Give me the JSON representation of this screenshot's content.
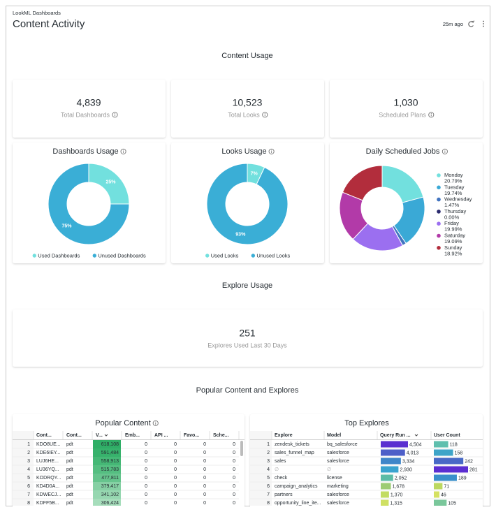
{
  "header": {
    "breadcrumb": "LookML Dashboards",
    "title": "Content Activity",
    "updated": "25m ago"
  },
  "sections": [
    "Content Usage",
    "Explore Usage",
    "Popular Content and Explores"
  ],
  "kpis": [
    {
      "value": "4,839",
      "label": "Total Dashboards"
    },
    {
      "value": "10,523",
      "label": "Total Looks"
    },
    {
      "value": "1,030",
      "label": "Scheduled Plans"
    },
    {
      "value": "251",
      "label": "Explores Used Last 30 Days"
    }
  ],
  "chart_data": [
    {
      "type": "pie",
      "title": "Dashboards Usage",
      "categories": [
        "Used Dashboards",
        "Unused Dashboards"
      ],
      "values": [
        25,
        75
      ],
      "value_labels": [
        "25%",
        "75%"
      ],
      "colors": [
        "#72e0de",
        "#3aaed6"
      ],
      "legend": "bottom"
    },
    {
      "type": "pie",
      "title": "Looks Usage",
      "categories": [
        "Used Looks",
        "Unused Looks"
      ],
      "values": [
        7,
        93
      ],
      "value_labels": [
        "7%",
        "93%"
      ],
      "colors": [
        "#72e0de",
        "#3aaed6"
      ],
      "legend": "bottom"
    },
    {
      "type": "pie",
      "title": "Daily Scheduled Jobs",
      "categories": [
        "Monday",
        "Tuesday",
        "Wednesday",
        "Thursday",
        "Friday",
        "Saturday",
        "Sunday"
      ],
      "values": [
        20.79,
        19.74,
        1.47,
        0,
        19.99,
        19.09,
        18.92
      ],
      "value_labels": [
        "20.79%",
        "19.74%",
        "1.47%",
        "0.00%",
        "19.99%",
        "19.09%",
        "18.92%"
      ],
      "colors": [
        "#72e0de",
        "#3aa9d6",
        "#4274c0",
        "#2a2a6e",
        "#9b6ff0",
        "#b23aa8",
        "#b22d3c"
      ],
      "legend": "right"
    }
  ],
  "popular_content": {
    "title": "Popular Content",
    "columns": [
      "Cont...",
      "Cont...",
      "V...",
      "Emb...",
      "API ...",
      "Favo...",
      "Sche..."
    ],
    "rows": [
      [
        1,
        "KDO8UE...",
        "pdt",
        618108,
        0,
        0,
        0,
        0
      ],
      [
        2,
        "KDE6IEY...",
        "pdt",
        591484,
        0,
        0,
        0,
        0
      ],
      [
        3,
        "LUJ6HE...",
        "pdt",
        558913,
        0,
        0,
        0,
        0
      ],
      [
        4,
        "LU36YQ...",
        "pdt",
        515783,
        0,
        0,
        0,
        0
      ],
      [
        5,
        "KODRQY...",
        "pdt",
        477811,
        0,
        0,
        0,
        0
      ],
      [
        6,
        "KD4D0A...",
        "pdt",
        379417,
        0,
        0,
        0,
        0
      ],
      [
        7,
        "KDWECJ...",
        "pdt",
        341102,
        0,
        0,
        0,
        0
      ],
      [
        8,
        "KDFF5B...",
        "pdt",
        306424,
        0,
        0,
        0,
        0
      ]
    ],
    "views_labels": [
      "618,108",
      "591,484",
      "558,913",
      "515,783",
      "477,811",
      "379,417",
      "341,102",
      "306,424"
    ],
    "views_colors": [
      "#2fae66",
      "#37b26c",
      "#45b876",
      "#55be81",
      "#66c48d",
      "#86d0a4",
      "#96d7b0",
      "#a6ddbb"
    ]
  },
  "top_explores": {
    "title": "Top Explores",
    "columns": [
      "Explore",
      "Model",
      "Query Run ...",
      "User Count"
    ],
    "rows": [
      [
        1,
        "zendesk_tickets",
        "bq_salesforce",
        4504,
        118
      ],
      [
        2,
        "sales_funnel_map",
        "salesforce",
        4013,
        158
      ],
      [
        3,
        "sales",
        "salesforce",
        3334,
        242
      ],
      [
        4,
        "∅",
        "∅",
        2930,
        281
      ],
      [
        5,
        "check",
        "license",
        2052,
        189
      ],
      [
        6,
        "campaign_analytics",
        "marketing",
        1678,
        71
      ],
      [
        7,
        "partners",
        "salesforce",
        1370,
        46
      ],
      [
        8,
        "opportunity_line_ite...",
        "salesforce",
        1315,
        105
      ]
    ],
    "query_run_labels": [
      "4,504",
      "4,013",
      "3,334",
      "2,930",
      "2,052",
      "1,678",
      "1,370",
      "1,315"
    ],
    "query_run_colors": [
      "#5a2fd0",
      "#4d5fc8",
      "#3f86c9",
      "#3aa3cf",
      "#5cbca6",
      "#9dcc73",
      "#c2dc62",
      "#cfe063"
    ],
    "user_count_colors": [
      "#5fbfae",
      "#3ea4c8",
      "#4869c6",
      "#5b2ed1",
      "#3a8fcb",
      "#bcd85f",
      "#d5e161",
      "#7ac79b"
    ]
  }
}
